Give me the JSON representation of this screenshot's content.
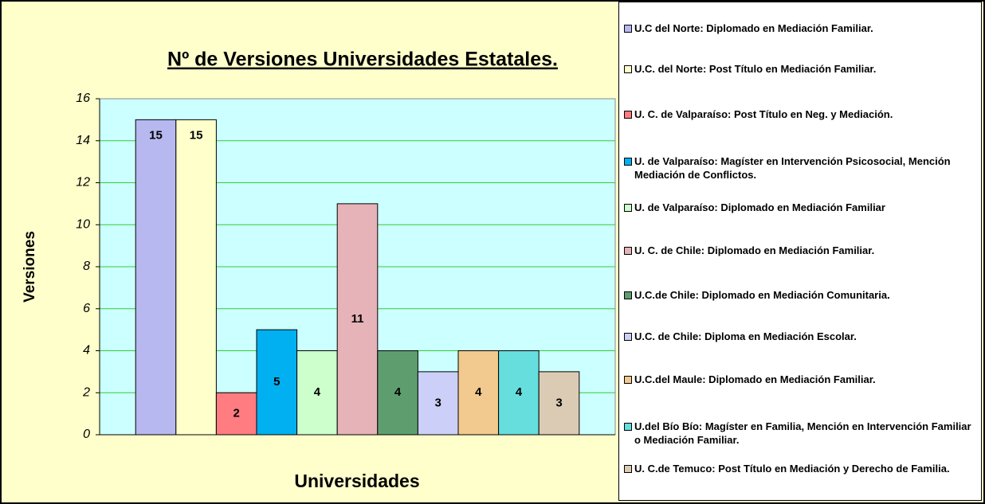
{
  "chart_data": {
    "type": "bar",
    "title": "Nº de Versiones Universidades Estatales.",
    "x_label": "Universidades",
    "y_label": "Versiones",
    "categories": [
      null
    ],
    "ylim": [
      0,
      16
    ],
    "yticks": [
      0,
      2,
      4,
      6,
      8,
      10,
      12,
      14,
      16
    ],
    "grid": true,
    "legend": "right",
    "series": [
      {
        "name": "U.C del Norte: Diplomado en Mediación Familiar.",
        "color": "#b8b8f0",
        "values": [
          15
        ]
      },
      {
        "name": "U.C. del Norte: Post Título en Mediación Familiar.",
        "color": "#ffffcc",
        "values": [
          15
        ]
      },
      {
        "name": "U. C. de Valparaíso: Post Título en Neg. y Mediación.",
        "color": "#ff7c80",
        "values": [
          2
        ]
      },
      {
        "name": "U. de Valparaíso: Magíster en Intervención Psicosocial, Mención Mediación de Conflictos.",
        "color": "#00b0f0",
        "values": [
          5
        ]
      },
      {
        "name": "U. de Valparaíso: Diplomado en Mediación Familiar",
        "color": "#ccffcc",
        "values": [
          4
        ]
      },
      {
        "name": "U. C. de Chile: Diplomado en Mediación Familiar.",
        "color": "#e6b3b8",
        "values": [
          11
        ]
      },
      {
        "name": "U.C.de Chile: Diplomado en Mediación Comunitaria.",
        "color": "#5e9e6e",
        "values": [
          4
        ]
      },
      {
        "name": "U.C. de Chile: Diploma en Mediación Escolar.",
        "color": "#ccd0f8",
        "values": [
          3
        ]
      },
      {
        "name": "U.C.del Maule: Diplomado en Mediación Familiar.",
        "color": "#f2c98e",
        "values": [
          4
        ]
      },
      {
        "name": "U.del Bío Bío: Magíster en Familia, Mención en Intervención Familiar o Mediación Familiar.",
        "color": "#66dede",
        "values": [
          4
        ]
      },
      {
        "name": "U. C.de Temuco: Post Título en Mediación y Derecho de Familia.",
        "color": "#dccbb4",
        "values": [
          3
        ]
      }
    ]
  }
}
